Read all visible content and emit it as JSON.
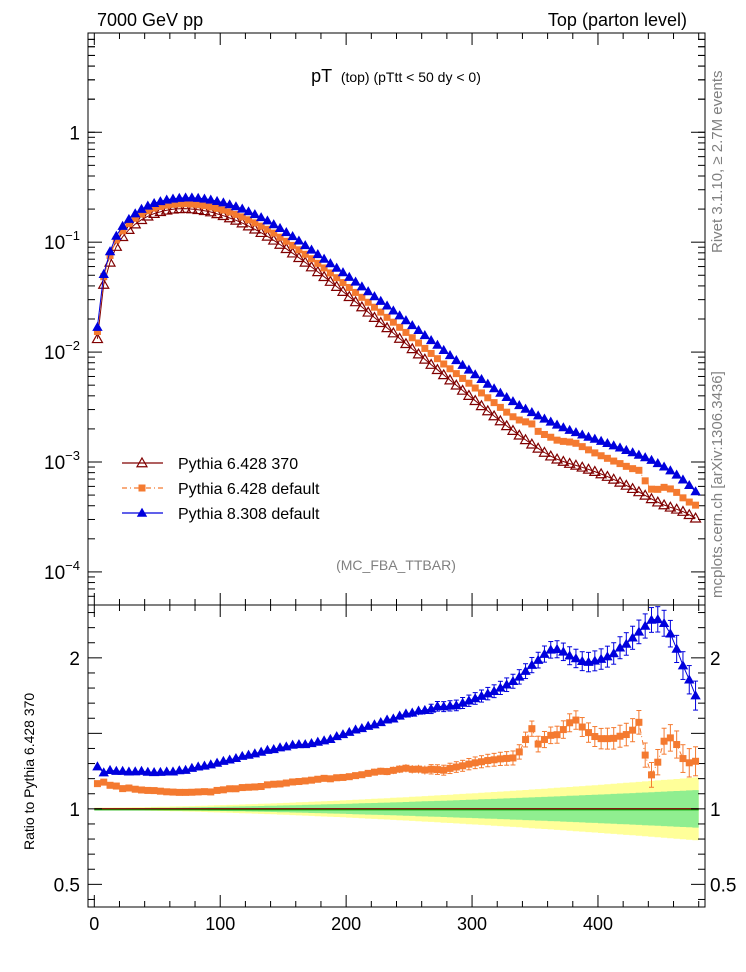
{
  "header": {
    "left": "7000 GeV pp",
    "right": "Top (parton level)"
  },
  "chart_data": {
    "type": "line",
    "title_main": "pT",
    "title_sub": "(top) (pTtt < 50 dy < 0)",
    "analysis_tag": "(MC_FBA_TTBAR)",
    "side_text_top": "Rivet 3.1.10, ≥ 2.7M events",
    "side_text_bottom": "mcplots.cern.ch [arXiv:1306.3436]",
    "ratio_ylabel": "Ratio to Pythia 6.428 370",
    "xlim": [
      -5,
      485
    ],
    "ylim_main": [
      5e-05,
      8
    ],
    "y_log_scale": true,
    "ylim_ratio": [
      0.35,
      2.35
    ],
    "x_ticks": [
      "0",
      "100",
      "200",
      "300",
      "400"
    ],
    "y_ticks_main": [
      "10",
      "10",
      "10",
      "10",
      "1"
    ],
    "y_tick_exponents": [
      "−4",
      "−3",
      "−2",
      "−1",
      ""
    ],
    "y_ticks_ratio": [
      "0.5",
      "1",
      "2"
    ],
    "legend": [
      {
        "name": "Pythia 6.428 370",
        "color": "#800000",
        "marker": "open-triangle"
      },
      {
        "name": "Pythia 6.428 default",
        "color": "#f47a30",
        "marker": "square"
      },
      {
        "name": "Pythia 8.308 default",
        "color": "#0000dd",
        "marker": "triangle"
      }
    ],
    "bands": {
      "inner": "#90ee90",
      "outer": "#ffff99"
    },
    "x": [
      2.5,
      7.5,
      12.5,
      17.5,
      22.5,
      27.5,
      32.5,
      37.5,
      42.5,
      47.5,
      52.5,
      57.5,
      62.5,
      67.5,
      72.5,
      77.5,
      82.5,
      87.5,
      92.5,
      97.5,
      102.5,
      107.5,
      112.5,
      117.5,
      122.5,
      127.5,
      132.5,
      137.5,
      142.5,
      147.5,
      152.5,
      157.5,
      162.5,
      167.5,
      172.5,
      177.5,
      182.5,
      187.5,
      192.5,
      197.5,
      202.5,
      207.5,
      212.5,
      217.5,
      222.5,
      227.5,
      232.5,
      237.5,
      242.5,
      247.5,
      252.5,
      257.5,
      262.5,
      267.5,
      272.5,
      277.5,
      282.5,
      287.5,
      292.5,
      297.5,
      302.5,
      307.5,
      312.5,
      317.5,
      322.5,
      327.5,
      332.5,
      337.5,
      342.5,
      347.5,
      352.5,
      357.5,
      362.5,
      367.5,
      372.5,
      377.5,
      382.5,
      387.5,
      392.5,
      397.5,
      402.5,
      407.5,
      412.5,
      417.5,
      422.5,
      427.5,
      432.5,
      437.5,
      442.5,
      447.5,
      452.5,
      457.5,
      462.5,
      467.5,
      472.5,
      477.5
    ],
    "series": [
      {
        "name": "Pythia 6.428 370",
        "values": [
          0.0132,
          0.0412,
          0.0655,
          0.0912,
          0.112,
          0.13,
          0.146,
          0.16,
          0.172,
          0.182,
          0.189,
          0.195,
          0.199,
          0.201,
          0.202,
          0.2,
          0.197,
          0.193,
          0.188,
          0.181,
          0.174,
          0.166,
          0.158,
          0.149,
          0.14,
          0.131,
          0.122,
          0.113,
          0.104,
          0.0953,
          0.0871,
          0.0794,
          0.0722,
          0.0655,
          0.0594,
          0.0537,
          0.0485,
          0.0438,
          0.0394,
          0.0355,
          0.0319,
          0.0286,
          0.0257,
          0.023,
          0.0206,
          0.0185,
          0.0166,
          0.0149,
          0.0133,
          0.0119,
          0.0107,
          0.00958,
          0.00859,
          0.0077,
          0.00691,
          0.0062,
          0.00556,
          0.00499,
          0.00448,
          0.00402,
          0.00361,
          0.00324,
          0.00291,
          0.00262,
          0.00236,
          0.00213,
          0.00193,
          0.00175,
          0.00159,
          0.00145,
          0.00133,
          0.00122,
          0.00113,
          0.00106,
          0.00101,
          0.000968,
          0.000932,
          0.000895,
          0.000857,
          0.000818,
          0.000778,
          0.000737,
          0.000695,
          0.000653,
          0.000612,
          0.000572,
          0.000534,
          0.000497,
          0.000462,
          0.000431,
          0.000406,
          0.000387,
          0.000371,
          0.000354,
          0.000331,
          0.000308
        ]
      },
      {
        "name": "Pythia 6.428 default",
        "values": [
          0.0154,
          0.0485,
          0.0757,
          0.105,
          0.127,
          0.148,
          0.165,
          0.18,
          0.193,
          0.204,
          0.211,
          0.217,
          0.221,
          0.223,
          0.224,
          0.222,
          0.219,
          0.215,
          0.209,
          0.203,
          0.196,
          0.188,
          0.179,
          0.17,
          0.16,
          0.15,
          0.14,
          0.131,
          0.121,
          0.111,
          0.102,
          0.0935,
          0.0853,
          0.0776,
          0.0707,
          0.0642,
          0.0583,
          0.0525,
          0.0475,
          0.0429,
          0.0387,
          0.0349,
          0.0315,
          0.0284,
          0.0256,
          0.0231,
          0.0207,
          0.0187,
          0.0168,
          0.0151,
          0.0135,
          0.0121,
          0.0108,
          0.00972,
          0.00871,
          0.00779,
          0.00705,
          0.00637,
          0.00576,
          0.00521,
          0.00471,
          0.00425,
          0.00384,
          0.00347,
          0.00314,
          0.00284,
          0.00258,
          0.00241,
          0.00232,
          0.00222,
          0.0019,
          0.00178,
          0.00168,
          0.00158,
          0.00154,
          0.00152,
          0.00148,
          0.00138,
          0.00129,
          0.00121,
          0.00114,
          0.00108,
          0.00102,
          0.000967,
          0.000913,
          0.00087,
          0.00084,
          0.000674,
          0.000566,
          0.000564,
          0.000588,
          0.000569,
          0.000529,
          0.000472,
          0.000432,
          0.000405
        ]
      },
      {
        "name": "Pythia 8.308 default",
        "values": [
          0.0169,
          0.0511,
          0.0823,
          0.114,
          0.14,
          0.162,
          0.182,
          0.2,
          0.214,
          0.226,
          0.235,
          0.243,
          0.248,
          0.252,
          0.254,
          0.254,
          0.252,
          0.248,
          0.243,
          0.236,
          0.229,
          0.22,
          0.211,
          0.201,
          0.19,
          0.179,
          0.168,
          0.157,
          0.145,
          0.134,
          0.123,
          0.113,
          0.103,
          0.0935,
          0.0852,
          0.0775,
          0.0704,
          0.064,
          0.0583,
          0.053,
          0.0481,
          0.0436,
          0.0394,
          0.0356,
          0.0321,
          0.0291,
          0.0264,
          0.0238,
          0.0215,
          0.0194,
          0.0175,
          0.0158,
          0.0142,
          0.0128,
          0.0116,
          0.0104,
          0.00935,
          0.00841,
          0.00762,
          0.0069,
          0.00625,
          0.00566,
          0.00513,
          0.00466,
          0.00425,
          0.00388,
          0.00356,
          0.00328,
          0.00304,
          0.00283,
          0.00264,
          0.00247,
          0.00232,
          0.00218,
          0.00206,
          0.00195,
          0.00186,
          0.00177,
          0.00169,
          0.00162,
          0.00155,
          0.00148,
          0.00141,
          0.00135,
          0.00128,
          0.00122,
          0.00116,
          0.0011,
          0.00104,
          0.000972,
          0.000905,
          0.000836,
          0.000764,
          0.00069,
          0.000614,
          0.000539
        ]
      }
    ],
    "ratio_series": [
      {
        "name": "Pythia 6.428 default",
        "values": [
          1.167,
          1.177,
          1.156,
          1.151,
          1.134,
          1.138,
          1.13,
          1.125,
          1.122,
          1.121,
          1.117,
          1.113,
          1.111,
          1.109,
          1.109,
          1.11,
          1.112,
          1.114,
          1.112,
          1.122,
          1.126,
          1.133,
          1.133,
          1.141,
          1.143,
          1.145,
          1.148,
          1.159,
          1.163,
          1.165,
          1.171,
          1.178,
          1.181,
          1.185,
          1.19,
          1.196,
          1.202,
          1.199,
          1.206,
          1.208,
          1.213,
          1.22,
          1.226,
          1.235,
          1.243,
          1.249,
          1.247,
          1.255,
          1.263,
          1.269,
          1.262,
          1.263,
          1.257,
          1.262,
          1.26,
          1.256,
          1.268,
          1.277,
          1.285,
          1.296,
          1.305,
          1.312,
          1.32,
          1.325,
          1.331,
          1.334,
          1.337,
          1.377,
          1.459,
          1.531,
          1.429,
          1.459,
          1.487,
          1.491,
          1.525,
          1.57,
          1.588,
          1.542,
          1.505,
          1.479,
          1.465,
          1.465,
          1.467,
          1.481,
          1.492,
          1.521,
          1.573,
          1.356,
          1.225,
          1.309,
          1.448,
          1.47,
          1.426,
          1.333,
          1.305,
          1.315
        ]
      },
      {
        "name": "Pythia 8.308 default",
        "values": [
          1.28,
          1.24,
          1.256,
          1.25,
          1.25,
          1.246,
          1.247,
          1.25,
          1.244,
          1.242,
          1.243,
          1.246,
          1.246,
          1.254,
          1.257,
          1.27,
          1.279,
          1.285,
          1.293,
          1.304,
          1.316,
          1.325,
          1.335,
          1.349,
          1.357,
          1.366,
          1.377,
          1.389,
          1.394,
          1.406,
          1.412,
          1.423,
          1.427,
          1.427,
          1.434,
          1.443,
          1.452,
          1.461,
          1.48,
          1.493,
          1.508,
          1.524,
          1.533,
          1.548,
          1.558,
          1.573,
          1.59,
          1.597,
          1.616,
          1.63,
          1.636,
          1.649,
          1.653,
          1.662,
          1.679,
          1.677,
          1.682,
          1.685,
          1.701,
          1.716,
          1.731,
          1.747,
          1.763,
          1.779,
          1.801,
          1.822,
          1.845,
          1.874,
          1.912,
          1.952,
          1.985,
          2.025,
          2.053,
          2.057,
          2.04,
          2.014,
          1.996,
          1.978,
          1.972,
          1.98,
          1.992,
          2.008,
          2.029,
          2.067,
          2.092,
          2.133,
          2.172,
          2.211,
          2.251,
          2.255,
          2.229,
          2.16,
          2.059,
          1.949,
          1.855,
          1.75
        ]
      }
    ]
  }
}
